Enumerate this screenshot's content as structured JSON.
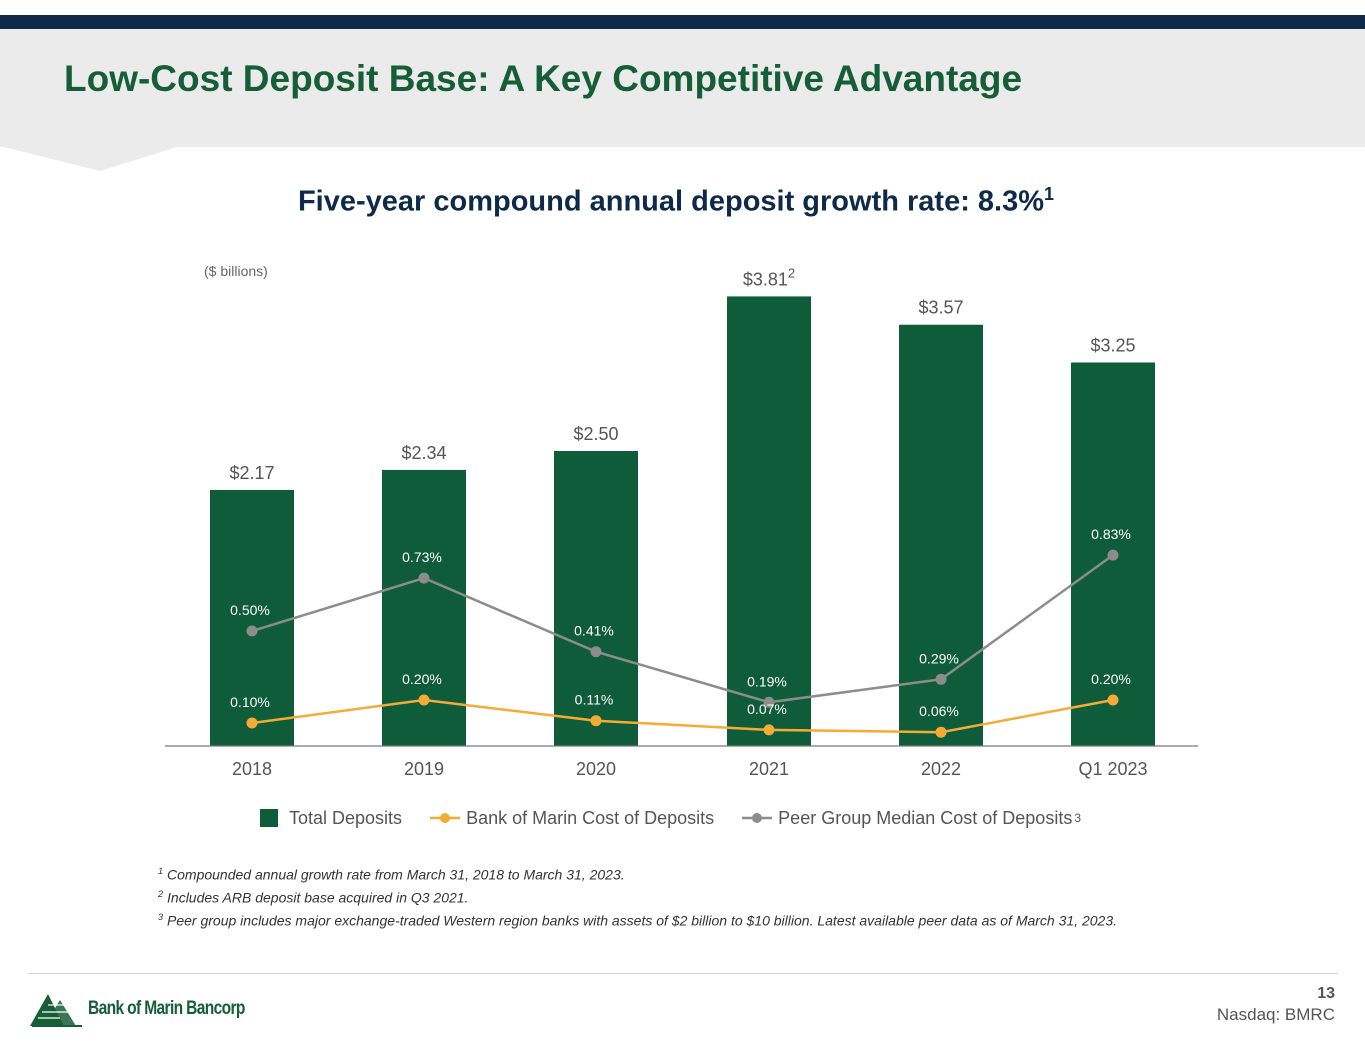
{
  "slide": {
    "title": "Low-Cost Deposit Base: A Key Competitive Advantage",
    "subtitle": "Five-year compound annual deposit growth rate: 8.3%",
    "subtitle_footnote": "1",
    "page_number": "13",
    "ticker": "Nasdaq: BMRC",
    "company": "Bank of Marin Bancorp"
  },
  "colors": {
    "title_green": "#155e38",
    "navy": "#0f2a48",
    "bar_green": "#0e5c3a",
    "orange": "#f5ab35",
    "gray": "#8c8c8c"
  },
  "chart_data": {
    "type": "bar",
    "unit_note": "($ billions)",
    "categories": [
      "2018",
      "2019",
      "2020",
      "2021",
      "2022",
      "Q1 2023"
    ],
    "bar_series": {
      "name": "Total Deposits",
      "values": [
        2.17,
        2.34,
        2.5,
        3.81,
        3.57,
        3.25
      ],
      "labels": [
        "$2.17",
        "$2.34",
        "$2.50",
        "$3.81",
        "$3.57",
        "$3.25"
      ],
      "label_footnotes": [
        "",
        "",
        "",
        "2",
        "",
        ""
      ]
    },
    "line_series": [
      {
        "name": "Bank of Marin Cost of Deposits",
        "values": [
          0.1,
          0.2,
          0.11,
          0.07,
          0.06,
          0.2
        ],
        "labels": [
          "0.10%",
          "0.20%",
          "0.11%",
          "0.07%",
          "0.06%",
          "0.20%"
        ],
        "color": "#f5ab35"
      },
      {
        "name": "Peer Group Median Cost of Deposits",
        "values": [
          0.5,
          0.73,
          0.41,
          0.19,
          0.29,
          0.83
        ],
        "labels": [
          "0.50%",
          "0.73%",
          "0.41%",
          "0.19%",
          "0.29%",
          "0.83%"
        ],
        "color": "#8c8c8c",
        "footnote": "3"
      }
    ],
    "legend_position": "bottom"
  },
  "footnotes": [
    {
      "mark": "1",
      "text": "Compounded annual growth rate from March 31, 2018 to March 31, 2023."
    },
    {
      "mark": "2",
      "text": "Includes ARB deposit base acquired in Q3 2021."
    },
    {
      "mark": "3",
      "text": "Peer group includes major exchange-traded Western region banks with assets of $2 billion to $10 billion.  Latest available peer data as of March 31, 2023."
    }
  ]
}
